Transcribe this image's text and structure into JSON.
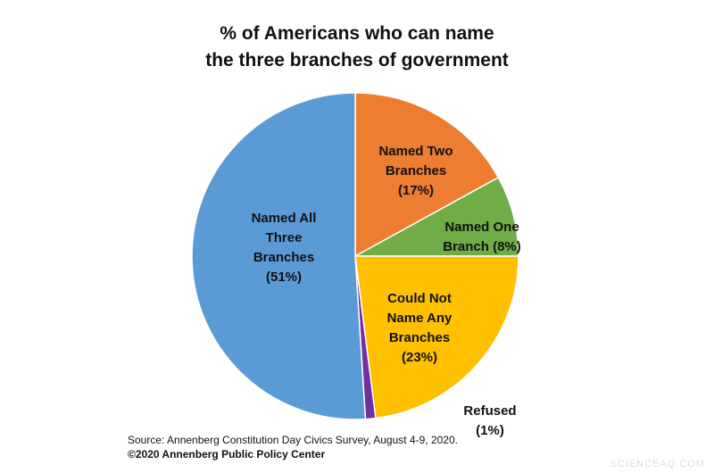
{
  "chart_data": {
    "type": "pie",
    "title": [
      "% of Americans who can name",
      "the three branches of government"
    ],
    "categories": [
      "Named Two Branches",
      "Named One Branch",
      "Could Not Name Any Branches",
      "Refused",
      "Named All Three Branches"
    ],
    "values": [
      17,
      8,
      23,
      1,
      51
    ],
    "value_labels": [
      "(17%)",
      "(8%)",
      "(23%)",
      "(1%)",
      "(51%)"
    ],
    "colors": [
      "#ed7d31",
      "#70ad47",
      "#ffc000",
      "#7030a0",
      "#5b9bd5"
    ],
    "source": "Source: Annenberg Constitution Day Civics Survey, August 4-9, 2020.",
    "copyright": "©2020 Annenberg Public Policy Center",
    "watermark": "SCIENCEAQ.COM"
  }
}
